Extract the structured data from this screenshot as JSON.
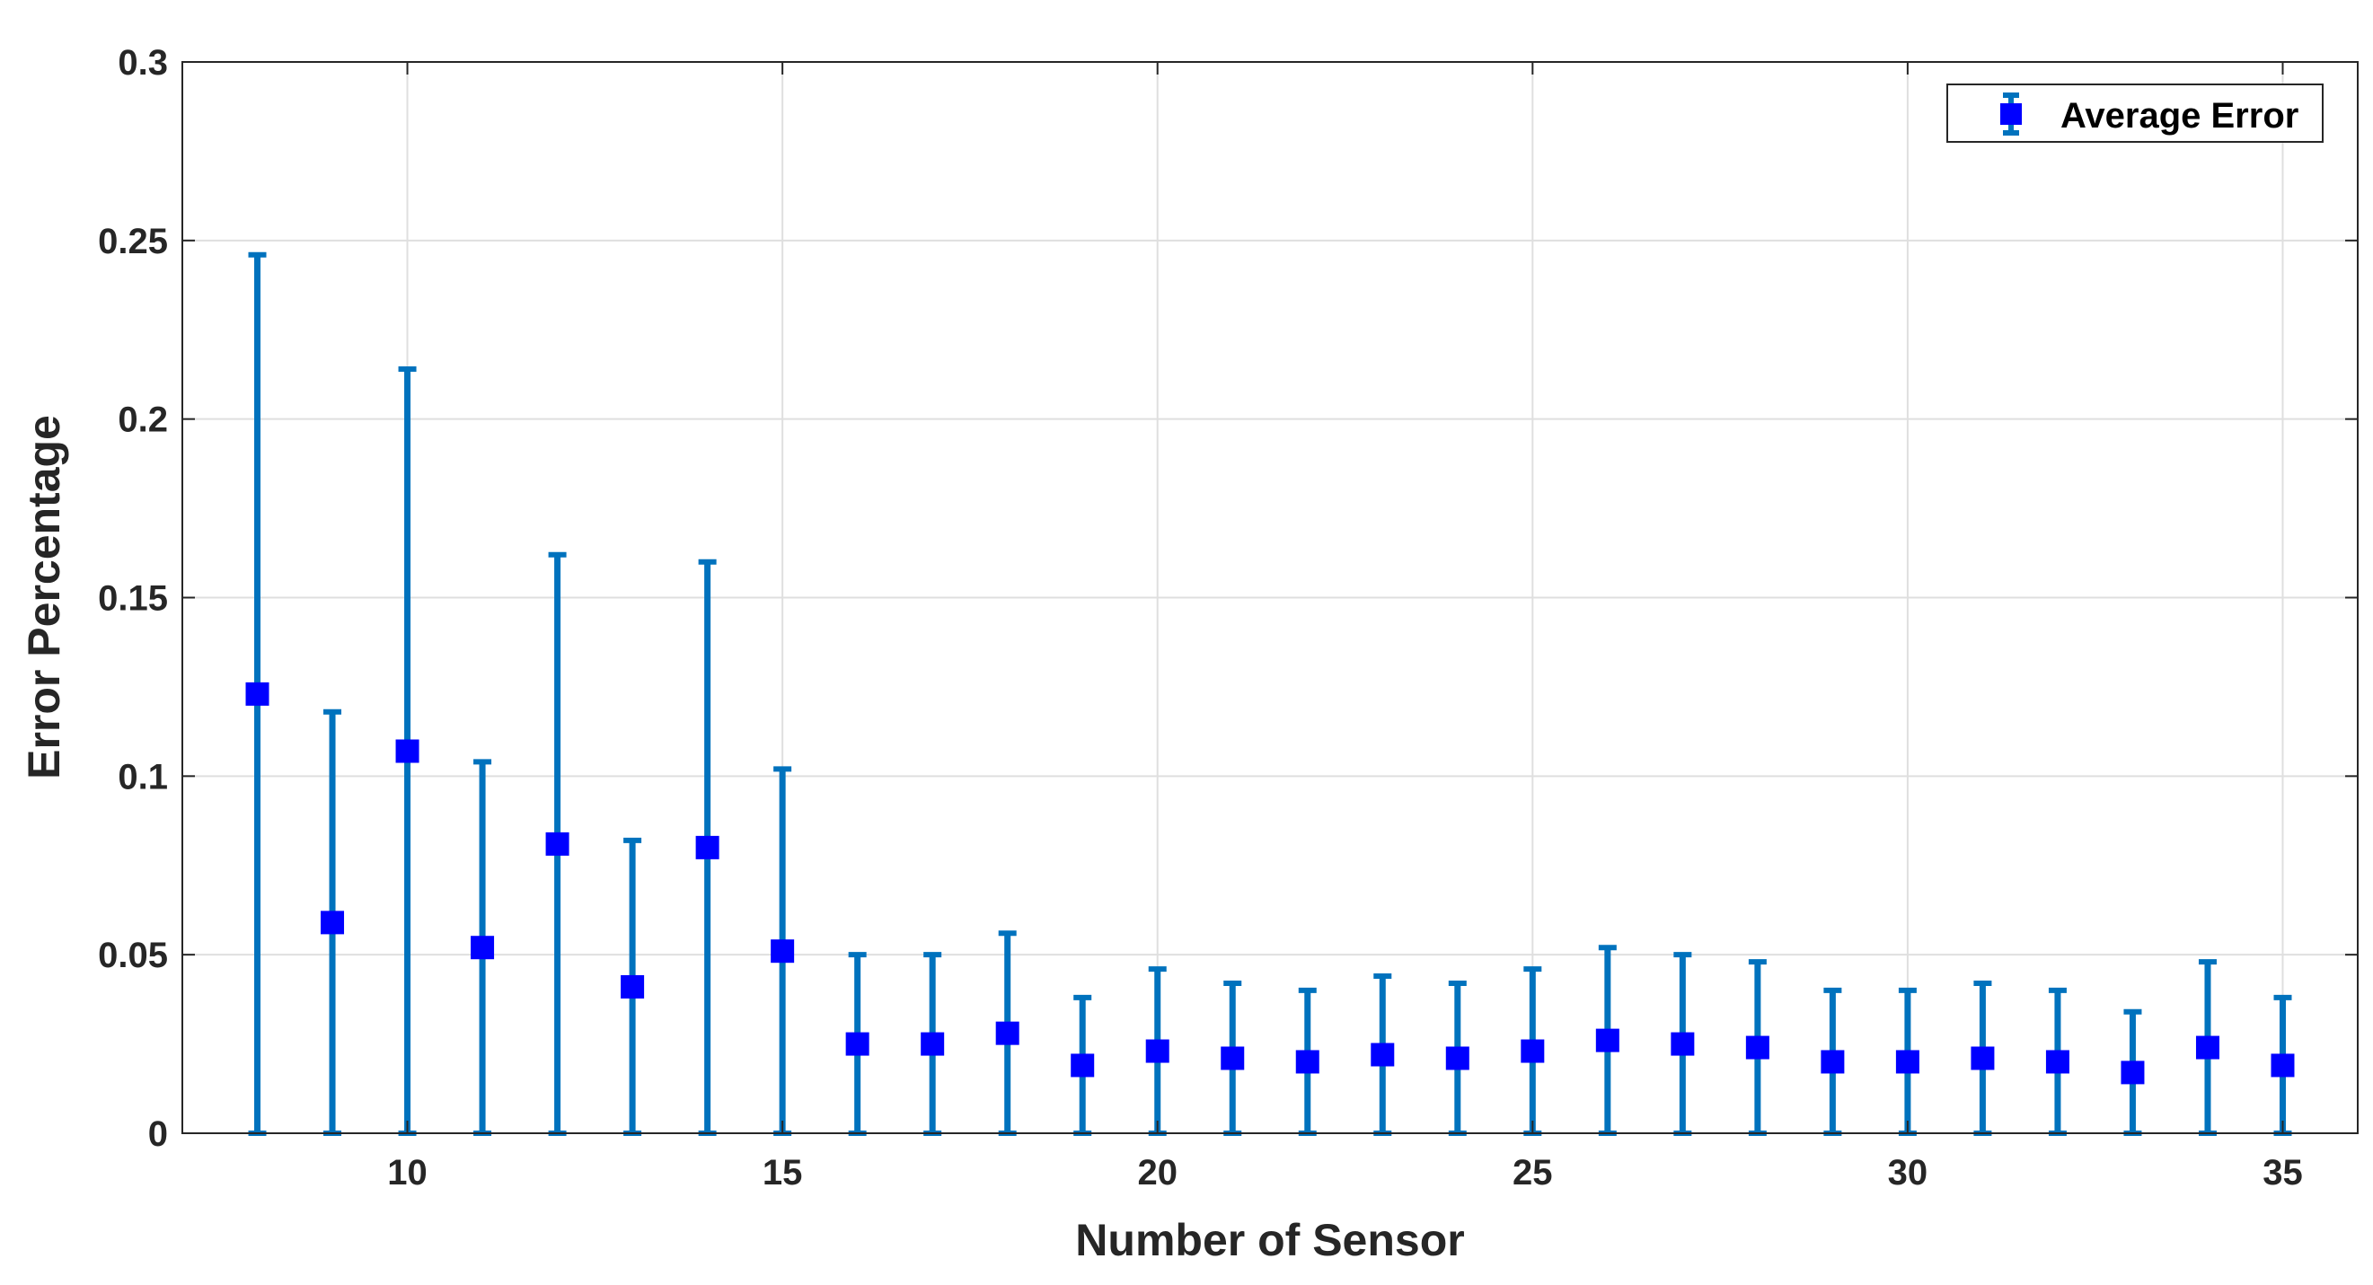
{
  "chart_data": {
    "type": "errorbar",
    "title": "",
    "xlabel": "Number of Sensor",
    "ylabel": "Error Percentage",
    "xlim": [
      7,
      36
    ],
    "ylim": [
      0,
      0.3
    ],
    "xticks": [
      10,
      15,
      20,
      25,
      30,
      35
    ],
    "yticks": [
      0,
      0.05,
      0.1,
      0.15,
      0.2,
      0.25,
      0.3
    ],
    "ytick_labels": [
      "0",
      "0.05",
      "0.1",
      "0.15",
      "0.2",
      "0.25",
      "0.3"
    ],
    "grid": true,
    "legend_placement": "top-right",
    "series": [
      {
        "name": "Average Error",
        "marker": "square",
        "marker_color": "#0000ff",
        "errorbar_color": "#0072bd",
        "x": [
          8,
          9,
          10,
          11,
          12,
          13,
          14,
          15,
          16,
          17,
          18,
          19,
          20,
          21,
          22,
          23,
          24,
          25,
          26,
          27,
          28,
          29,
          30,
          31,
          32,
          33,
          34,
          35
        ],
        "y": [
          0.123,
          0.059,
          0.107,
          0.052,
          0.081,
          0.041,
          0.08,
          0.051,
          0.025,
          0.025,
          0.028,
          0.019,
          0.023,
          0.021,
          0.02,
          0.022,
          0.021,
          0.023,
          0.026,
          0.025,
          0.024,
          0.02,
          0.02,
          0.021,
          0.02,
          0.017,
          0.024,
          0.019
        ],
        "error": [
          0.123,
          0.059,
          0.107,
          0.052,
          0.081,
          0.041,
          0.08,
          0.051,
          0.025,
          0.025,
          0.028,
          0.019,
          0.023,
          0.021,
          0.02,
          0.022,
          0.021,
          0.023,
          0.026,
          0.025,
          0.024,
          0.02,
          0.02,
          0.021,
          0.02,
          0.017,
          0.024,
          0.019
        ]
      }
    ]
  }
}
